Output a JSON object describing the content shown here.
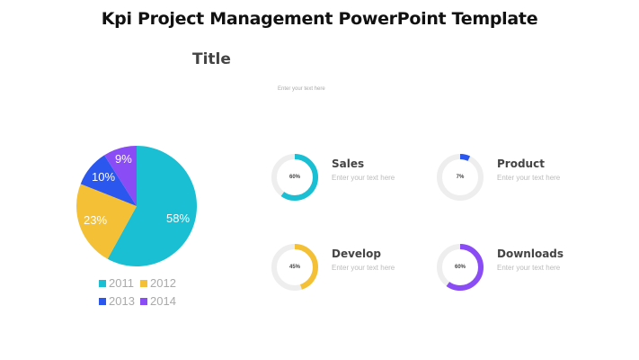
{
  "header": {
    "title": "Kpi Project Management PowerPoint Template",
    "subtitle": "Title",
    "subtitle_text": "Enter your text here"
  },
  "pie": {
    "labels": [
      "58%",
      "23%",
      "10%",
      "9%"
    ],
    "legend": [
      "2011",
      "2012",
      "2013",
      "2014"
    ]
  },
  "kpis": [
    {
      "label": "Sales",
      "pct": "60%",
      "desc": "Enter your text here"
    },
    {
      "label": "Product",
      "pct": "7%",
      "desc": "Enter your text here"
    },
    {
      "label": "Develop",
      "pct": "45%",
      "desc": "Enter your text here"
    },
    {
      "label": "Downloads",
      "pct": "60%",
      "desc": "Enter your text here"
    }
  ],
  "colors": {
    "teal": "#1BBFD3",
    "yellow": "#F4C136",
    "blue": "#2B57EE",
    "purple": "#8A4CF5",
    "track": "#EEEEEE"
  },
  "chart_data": [
    {
      "type": "pie",
      "title": "",
      "categories": [
        "2011",
        "2012",
        "2013",
        "2014"
      ],
      "values": [
        58,
        23,
        10,
        9
      ],
      "colors": [
        "#1BBFD3",
        "#F4C136",
        "#2B57EE",
        "#8A4CF5"
      ],
      "legend_position": "bottom"
    },
    {
      "type": "pie",
      "subtype": "donut-progress",
      "categories": [
        "Sales",
        "Product",
        "Develop",
        "Downloads"
      ],
      "values": [
        60,
        7,
        45,
        60
      ],
      "colors": [
        "#1BBFD3",
        "#2B57EE",
        "#F4C136",
        "#8A4CF5"
      ]
    }
  ]
}
